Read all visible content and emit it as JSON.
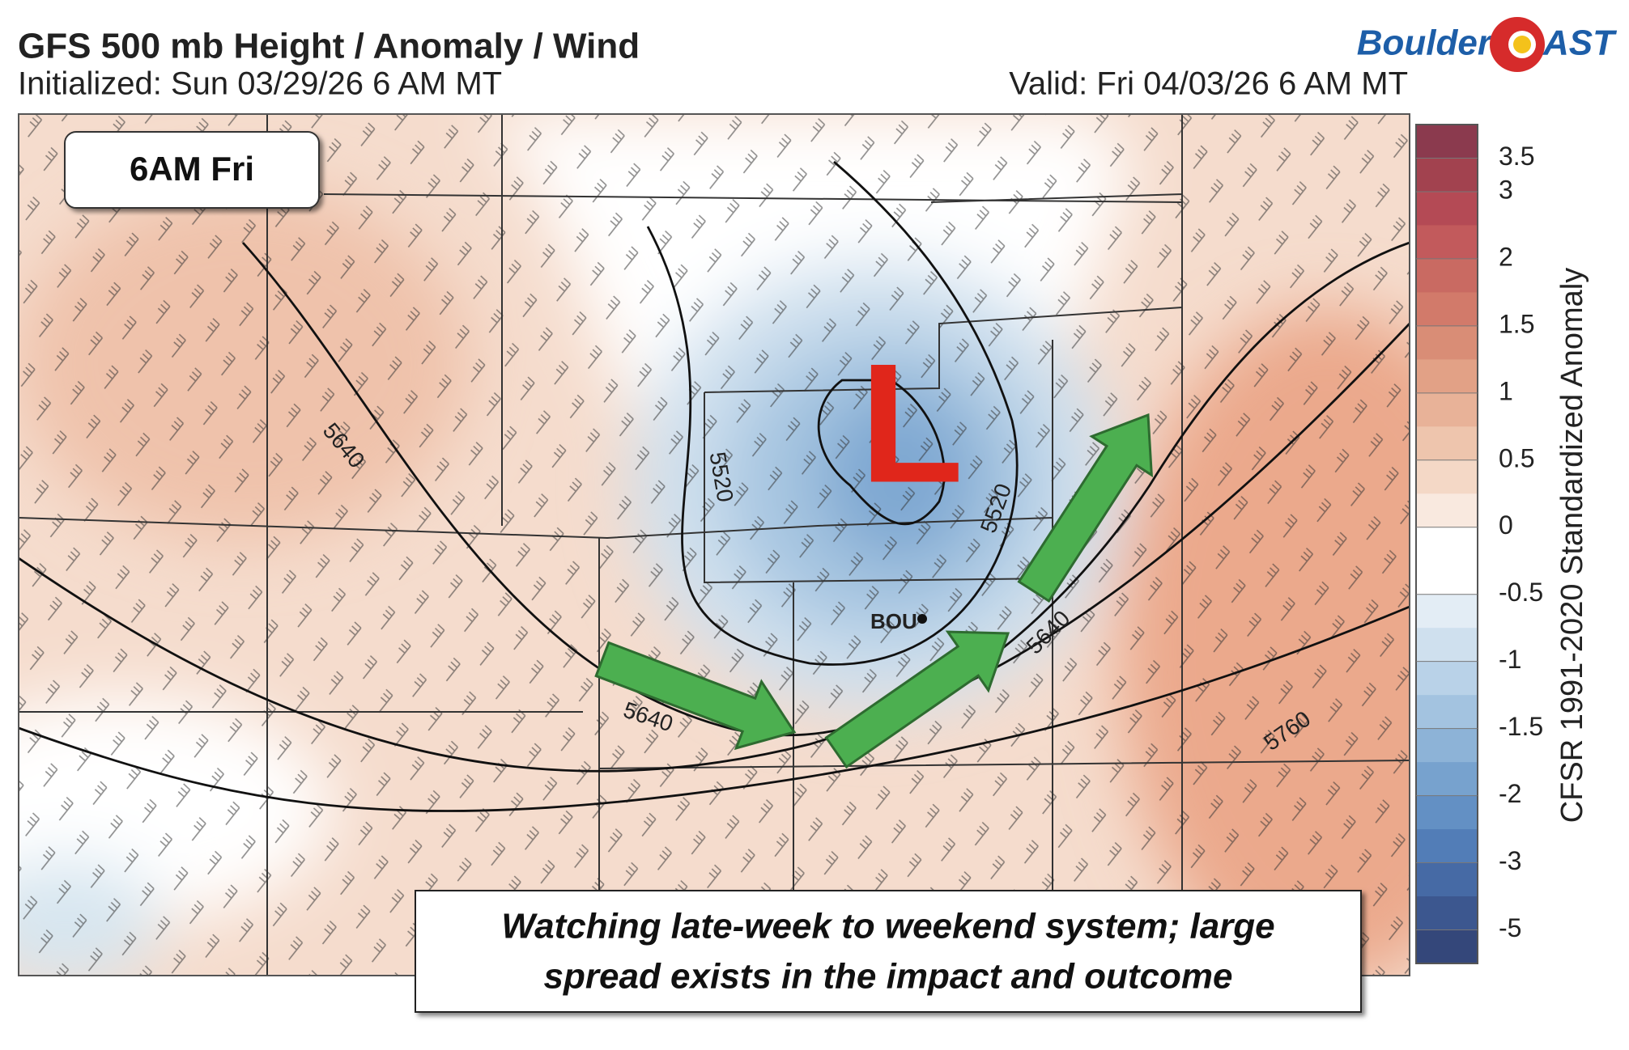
{
  "header": {
    "title": "GFS 500 mb Height / Anomaly / Wind",
    "initialized": "Initialized: Sun 03/29/26 6 AM MT",
    "valid": "Valid: Fri 04/03/26 6 AM MT"
  },
  "logo": {
    "left": "Boulder",
    "right": "AST"
  },
  "map": {
    "time_label": "6AM Fri",
    "low_label": "L",
    "station": "BOU",
    "contour_labels": [
      "5640",
      "5520",
      "5640",
      "5520",
      "5640",
      "5760"
    ],
    "caption": [
      "Watching late-week to weekend system; large",
      "spread exists in the impact and outcome"
    ]
  },
  "colorbar": {
    "title": "CFSR 1991-2020 Standardized Anomaly",
    "ticks": [
      3.5,
      3,
      2,
      1.5,
      1,
      0.5,
      0,
      -0.5,
      -1,
      -1.5,
      -2,
      -3,
      -5
    ],
    "colors": [
      "#8b3a4e",
      "#a2424f",
      "#b44a55",
      "#c25a5c",
      "#c96a62",
      "#d27a6a",
      "#d98d76",
      "#e2a186",
      "#e8b298",
      "#eec5ad",
      "#f4d8c6",
      "#f9e9df",
      "#ffffff",
      "#ffffff",
      "#e3edf5",
      "#cfe0ee",
      "#b9d2e8",
      "#a3c3e0",
      "#8db3d7",
      "#77a2ce",
      "#6390c4",
      "#527db7",
      "#466aa5",
      "#3c578f",
      "#34477a"
    ]
  }
}
